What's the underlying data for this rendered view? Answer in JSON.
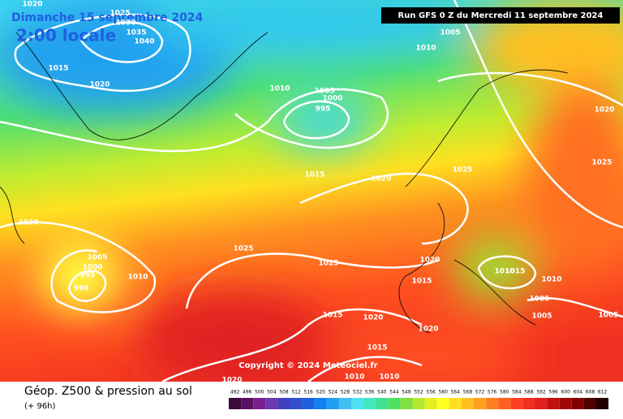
{
  "header": {
    "date": "Dimanche 15 septembre 2024",
    "time": "2:00 locale",
    "run": "Run GFS 0 Z du Mercredi 11 septembre 2024"
  },
  "copyright": "Copyright © 2024 Meteociel.fr",
  "footer": {
    "title": "Géop. Z500 & pression au sol",
    "lead": "(+ 96h)"
  },
  "isobar_labels": [
    "1020",
    "1025",
    "1030",
    "1035",
    "1040",
    "1015",
    "1020",
    "1010",
    "1005",
    "1000",
    "995",
    "1015",
    "1020",
    "1025",
    "1020",
    "1025",
    "1005",
    "1010",
    "1020",
    "1005",
    "1000",
    "995",
    "990",
    "1010",
    "1025",
    "1025",
    "1020",
    "1015",
    "1015",
    "1020",
    "1020",
    "1015",
    "1010",
    "1010",
    "1020",
    "1010",
    "1015",
    "1010",
    "1005",
    "1005",
    "1005"
  ],
  "colorbar": {
    "labels": [
      492,
      496,
      500,
      504,
      508,
      512,
      516,
      520,
      524,
      528,
      532,
      536,
      540,
      544,
      548,
      552,
      556,
      560,
      564,
      568,
      572,
      576,
      580,
      584,
      588,
      592,
      596,
      600,
      604,
      608,
      612
    ],
    "colors": [
      "#3a0a3a",
      "#5a1060",
      "#7a2090",
      "#6a3ab0",
      "#4040c0",
      "#3050d0",
      "#2060e0",
      "#1080f0",
      "#20a0f0",
      "#40c0f0",
      "#50e0f0",
      "#40e8c0",
      "#40e090",
      "#50e060",
      "#80e040",
      "#b0e830",
      "#e0f020",
      "#ffff20",
      "#ffe020",
      "#ffc020",
      "#ffa020",
      "#ff8020",
      "#ff6020",
      "#ff4020",
      "#f03020",
      "#e02020",
      "#c01010",
      "#a00808",
      "#800000",
      "#500000",
      "#200000"
    ]
  }
}
